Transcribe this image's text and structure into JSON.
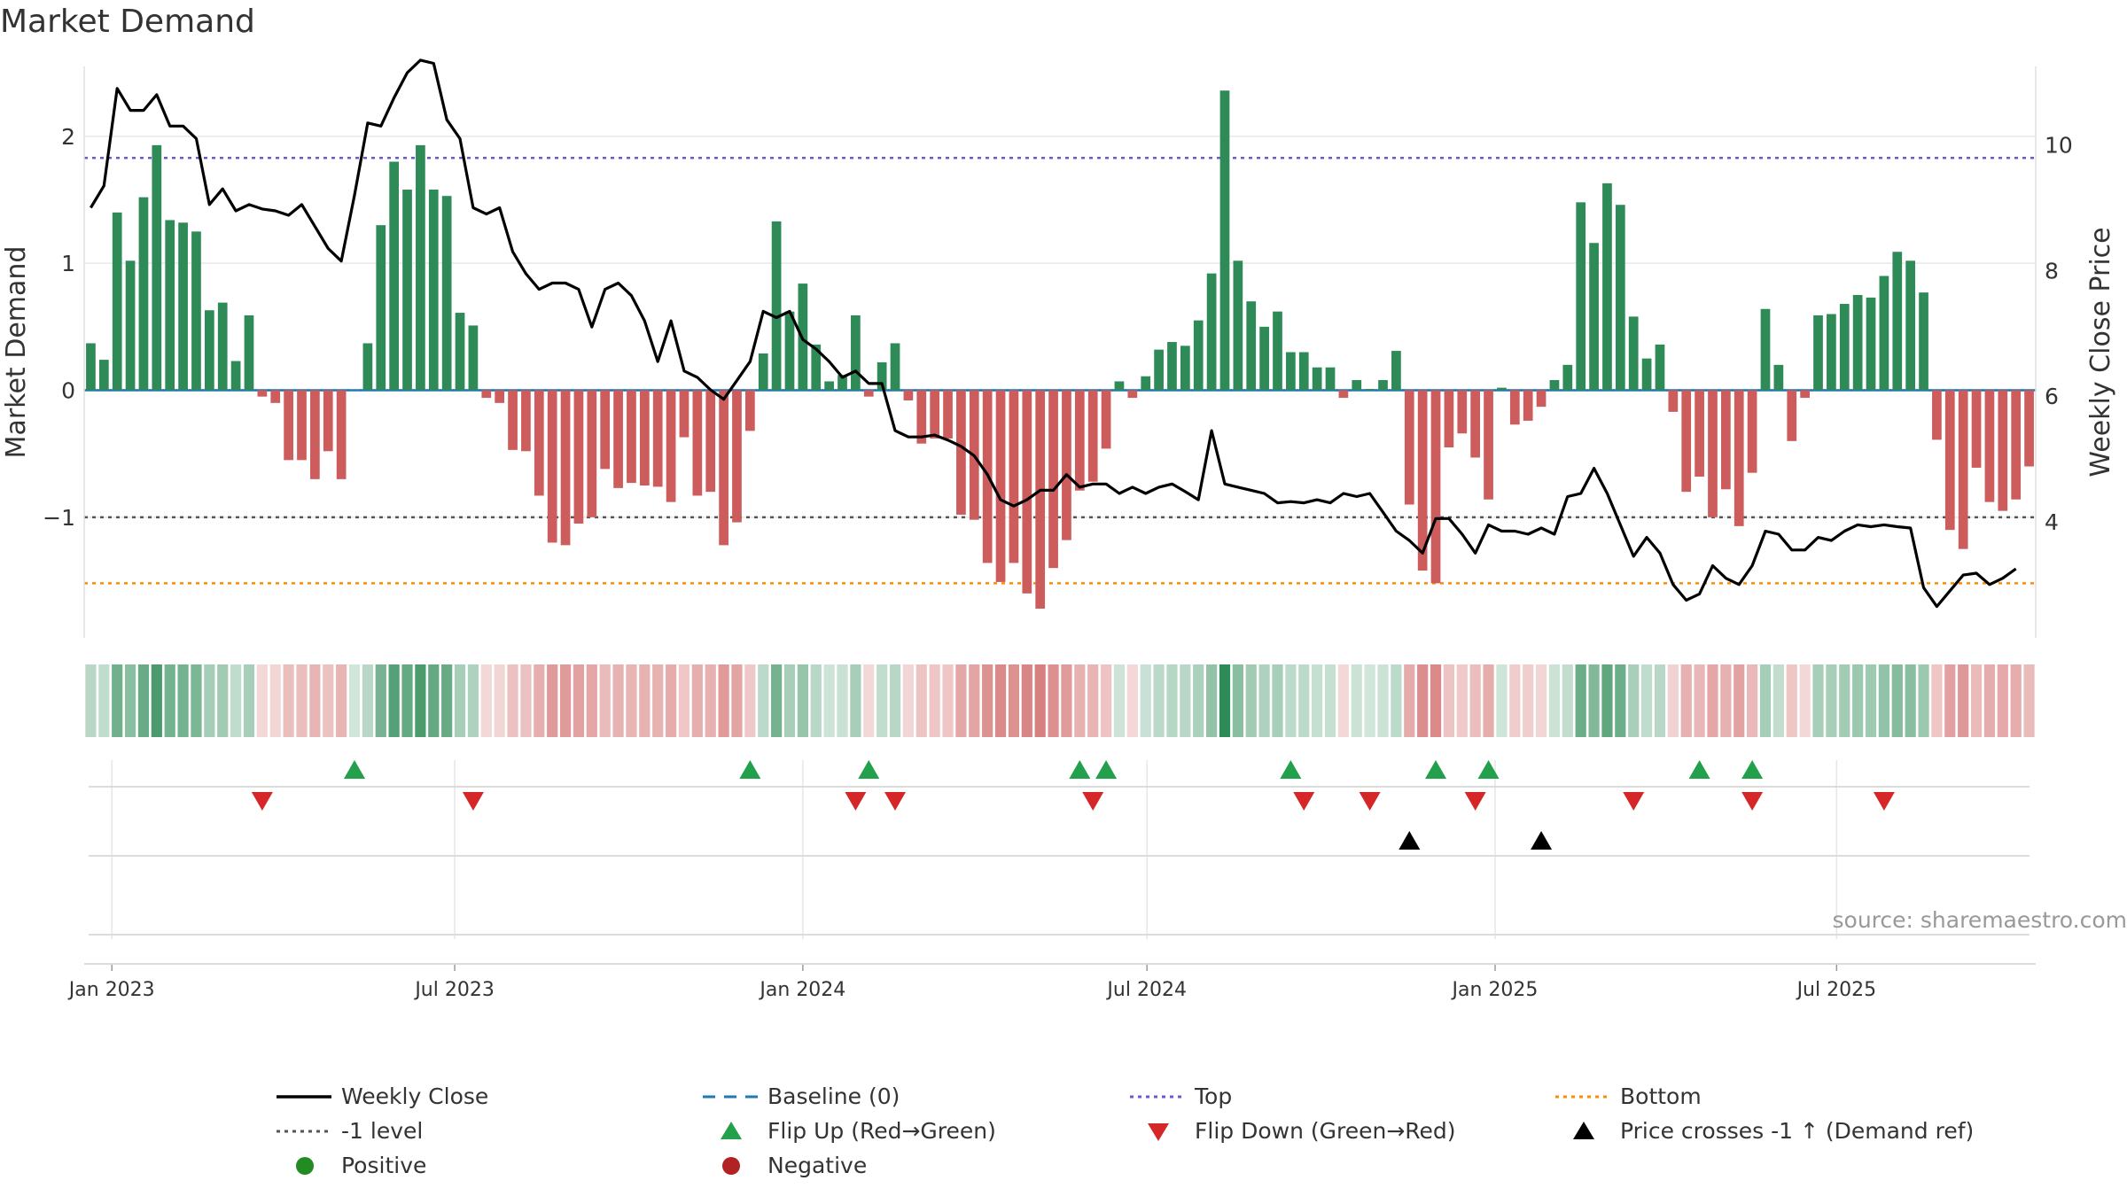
{
  "title": "Market Demand",
  "watermark": "source: sharemaestro.com",
  "colors": {
    "positive": "#2e8b57",
    "negative": "#cd5c5c",
    "price": "#000000",
    "baseline": "#1f77b4",
    "top": "#6a5acd",
    "minus1": "#555555",
    "bottom": "#ff8c00",
    "flip_up": "#22a04b",
    "flip_down": "#d62728",
    "cross": "#000000"
  },
  "chart_data": {
    "type": "bar",
    "title": "Market Demand",
    "ylabel": "Market Demand",
    "y2label": "Weekly Close Price",
    "ylim": [
      -1.95,
      2.55
    ],
    "y2lim": [
      2.15,
      11.25
    ],
    "yticks": [
      {
        "v": 2,
        "label": "2"
      },
      {
        "v": 1,
        "label": "1"
      },
      {
        "v": 0,
        "label": "0"
      },
      {
        "v": -1,
        "label": "−1"
      }
    ],
    "y2ticks": [
      {
        "v": 10,
        "label": "10"
      },
      {
        "v": 8,
        "label": "8"
      },
      {
        "v": 6,
        "label": "6"
      },
      {
        "v": 4,
        "label": "4"
      }
    ],
    "xticks": [
      {
        "i": 1.6,
        "label": "Jan 2023"
      },
      {
        "i": 27.6,
        "label": "Jul 2023"
      },
      {
        "i": 54,
        "label": "Jan 2024"
      },
      {
        "i": 80.1,
        "label": "Jul 2024"
      },
      {
        "i": 106.5,
        "label": "Jan 2025"
      },
      {
        "i": 132.4,
        "label": "Jul 2025"
      }
    ],
    "levels": {
      "baseline": 0,
      "top": 1.83,
      "minus1": -1,
      "bottom": -1.52
    },
    "demand": [
      0.37,
      0.24,
      1.4,
      1.02,
      1.52,
      1.93,
      1.34,
      1.32,
      1.25,
      0.63,
      0.69,
      0.23,
      0.59,
      -0.05,
      -0.1,
      -0.55,
      -0.55,
      -0.7,
      -0.48,
      -0.7,
      0,
      0.37,
      1.3,
      1.8,
      1.58,
      1.93,
      1.58,
      1.53,
      0.61,
      0.51,
      -0.06,
      -0.1,
      -0.47,
      -0.48,
      -0.83,
      -1.2,
      -1.22,
      -1.05,
      -1.0,
      -0.62,
      -0.77,
      -0.73,
      -0.75,
      -0.76,
      -0.88,
      -0.37,
      -0.83,
      -0.8,
      -1.22,
      -1.04,
      -0.32,
      0.29,
      1.33,
      0.62,
      0.84,
      0.36,
      0.07,
      0.12,
      0.59,
      -0.05,
      0.22,
      0.37,
      -0.08,
      -0.42,
      -0.38,
      -0.38,
      -0.98,
      -1.02,
      -1.36,
      -1.51,
      -1.36,
      -1.6,
      -1.72,
      -1.4,
      -1.18,
      -0.79,
      -0.72,
      -0.46,
      0.07,
      -0.06,
      0.11,
      0.32,
      0.38,
      0.35,
      0.55,
      0.92,
      2.36,
      1.02,
      0.7,
      0.5,
      0.62,
      0.3,
      0.3,
      0.18,
      0.18,
      -0.06,
      0.08,
      0.01,
      0.08,
      0.31,
      -0.9,
      -1.42,
      -1.52,
      -0.45,
      -0.34,
      -0.53,
      -0.86,
      0.02,
      -0.27,
      -0.24,
      -0.13,
      0.08,
      0.2,
      1.48,
      1.16,
      1.63,
      1.46,
      0.58,
      0.25,
      0.36,
      -0.17,
      -0.8,
      -0.68,
      -1.0,
      -0.78,
      -1.07,
      -0.65,
      0.64,
      0.2,
      -0.4,
      -0.06,
      0.59,
      0.6,
      0.68,
      0.75,
      0.73,
      0.9,
      1.09,
      1.02,
      0.77,
      -0.39,
      -1.1,
      -1.25,
      -0.61,
      -0.88,
      -0.95,
      -0.86,
      -0.6
    ],
    "price": [
      9.0,
      9.35,
      10.9,
      10.55,
      10.55,
      10.8,
      10.3,
      10.3,
      10.1,
      9.05,
      9.3,
      8.95,
      9.05,
      8.98,
      8.95,
      8.88,
      9.05,
      8.7,
      8.35,
      8.15,
      9.2,
      10.35,
      10.3,
      10.75,
      11.15,
      11.35,
      11.3,
      10.4,
      10.1,
      9.0,
      8.9,
      9.0,
      8.3,
      7.95,
      7.7,
      7.8,
      7.8,
      7.7,
      7.1,
      7.7,
      7.8,
      7.6,
      7.2,
      6.55,
      7.2,
      6.4,
      6.3,
      6.1,
      5.95,
      6.25,
      6.55,
      7.35,
      7.25,
      7.35,
      6.9,
      6.75,
      6.55,
      6.3,
      6.4,
      6.2,
      6.2,
      5.45,
      5.35,
      5.35,
      5.38,
      5.3,
      5.2,
      5.05,
      4.75,
      4.35,
      4.25,
      4.35,
      4.5,
      4.5,
      4.75,
      4.55,
      4.6,
      4.6,
      4.45,
      4.55,
      4.45,
      4.55,
      4.6,
      4.48,
      4.35,
      5.45,
      4.6,
      4.55,
      4.5,
      4.45,
      4.3,
      4.32,
      4.3,
      4.35,
      4.3,
      4.45,
      4.4,
      4.45,
      4.15,
      3.85,
      3.7,
      3.5,
      4.05,
      4.05,
      3.8,
      3.5,
      3.95,
      3.85,
      3.85,
      3.8,
      3.9,
      3.8,
      4.4,
      4.45,
      4.85,
      4.45,
      3.95,
      3.45,
      3.75,
      3.5,
      3.0,
      2.75,
      2.85,
      3.3,
      3.1,
      3.0,
      3.3,
      3.85,
      3.8,
      3.55,
      3.55,
      3.75,
      3.7,
      3.85,
      3.95,
      3.92,
      3.95,
      3.92,
      3.9,
      2.95,
      2.65,
      2.9,
      3.15,
      3.18,
      3.0,
      3.1,
      3.25
    ],
    "flip_up_idx": [
      20,
      50,
      59,
      75,
      77,
      91,
      102,
      106,
      122,
      126
    ],
    "flip_down_idx": [
      13,
      29,
      58,
      61,
      76,
      92,
      97,
      105,
      117,
      126,
      136
    ],
    "price_cross_idx": [
      100,
      110
    ],
    "legend": [
      {
        "key": "weekly_close",
        "label": "Weekly Close",
        "symbol": "line",
        "color": "#000000"
      },
      {
        "key": "baseline",
        "label": "Baseline (0)",
        "symbol": "dash",
        "color": "#1f77b4"
      },
      {
        "key": "top",
        "label": "Top",
        "symbol": "dot",
        "color": "#6a5acd"
      },
      {
        "key": "bottom",
        "label": "Bottom",
        "symbol": "dot",
        "color": "#ff8c00"
      },
      {
        "key": "minus1",
        "label": "-1 level",
        "symbol": "dot",
        "color": "#555555"
      },
      {
        "key": "flip_up",
        "label": "Flip Up (Red→Green)",
        "symbol": "tri-up",
        "color": "#22a04b"
      },
      {
        "key": "flip_down",
        "label": "Flip Down (Green→Red)",
        "symbol": "tri-down",
        "color": "#d62728"
      },
      {
        "key": "price_cross",
        "label": "Price crosses -1 ↑ (Demand ref)",
        "symbol": "tri-up",
        "color": "#000000"
      },
      {
        "key": "positive",
        "label": "Positive",
        "symbol": "circle",
        "color": "#228b22"
      },
      {
        "key": "negative",
        "label": "Negative",
        "symbol": "circle",
        "color": "#b22222"
      }
    ]
  }
}
